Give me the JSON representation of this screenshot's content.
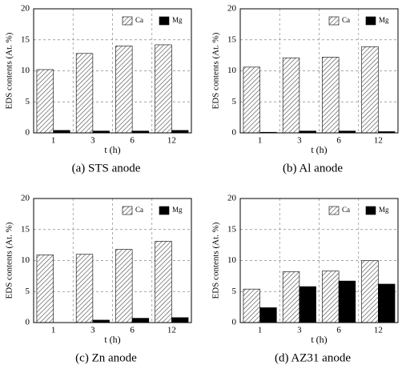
{
  "chart_data": [
    {
      "type": "bar",
      "caption": "(a) STS anode",
      "x_label": "t (h)",
      "y_label": "EDS contents (At. %)",
      "categories": [
        "1",
        "3",
        "6",
        "12"
      ],
      "series": [
        {
          "name": "Ca",
          "color": "#444444",
          "pattern": "hatch",
          "values": [
            10.2,
            12.8,
            14.0,
            14.2
          ]
        },
        {
          "name": "Mg",
          "color": "#000000",
          "values": [
            0.4,
            0.3,
            0.3,
            0.4
          ]
        }
      ],
      "ylim": [
        0,
        20
      ],
      "yticks": [
        0,
        5,
        10,
        15,
        20
      ],
      "grid": true
    },
    {
      "type": "bar",
      "caption": "(b) Al anode",
      "x_label": "t (h)",
      "y_label": "EDS contents (At. %)",
      "categories": [
        "1",
        "3",
        "6",
        "12"
      ],
      "series": [
        {
          "name": "Ca",
          "color": "#444444",
          "pattern": "hatch",
          "values": [
            10.6,
            12.1,
            12.2,
            13.9
          ]
        },
        {
          "name": "Mg",
          "color": "#000000",
          "values": [
            0.1,
            0.3,
            0.3,
            0.2
          ]
        }
      ],
      "ylim": [
        0,
        20
      ],
      "yticks": [
        0,
        5,
        10,
        15,
        20
      ],
      "grid": true
    },
    {
      "type": "bar",
      "caption": "(c) Zn anode",
      "x_label": "t (h)",
      "y_label": "EDS contents (At. %)",
      "categories": [
        "1",
        "3",
        "6",
        "12"
      ],
      "series": [
        {
          "name": "Ca",
          "color": "#444444",
          "pattern": "hatch",
          "values": [
            10.9,
            11.0,
            11.8,
            13.1
          ]
        },
        {
          "name": "Mg",
          "color": "#000000",
          "values": [
            0.0,
            0.4,
            0.7,
            0.8
          ]
        }
      ],
      "ylim": [
        0,
        20
      ],
      "yticks": [
        0,
        5,
        10,
        15,
        20
      ],
      "grid": true
    },
    {
      "type": "bar",
      "caption": "(d) AZ31 anode",
      "x_label": "t (h)",
      "y_label": "EDS contents (At. %)",
      "categories": [
        "1",
        "3",
        "6",
        "12"
      ],
      "series": [
        {
          "name": "Ca",
          "color": "#444444",
          "pattern": "hatch",
          "values": [
            5.4,
            8.2,
            8.3,
            10.0
          ]
        },
        {
          "name": "Mg",
          "color": "#000000",
          "values": [
            2.4,
            5.8,
            6.7,
            6.2
          ]
        }
      ],
      "ylim": [
        0,
        20
      ],
      "yticks": [
        0,
        5,
        10,
        15,
        20
      ],
      "grid": true
    }
  ]
}
